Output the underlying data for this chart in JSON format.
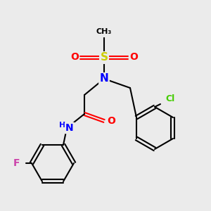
{
  "bg_color": "#ebebeb",
  "bond_color": "#000000",
  "atom_colors": {
    "N": "#0000ff",
    "O": "#ff0000",
    "S": "#cccc00",
    "F": "#cc44aa",
    "Cl": "#44cc00",
    "H": "#000000",
    "C": "#000000"
  },
  "figsize": [
    3.0,
    3.0
  ],
  "dpi": 100
}
